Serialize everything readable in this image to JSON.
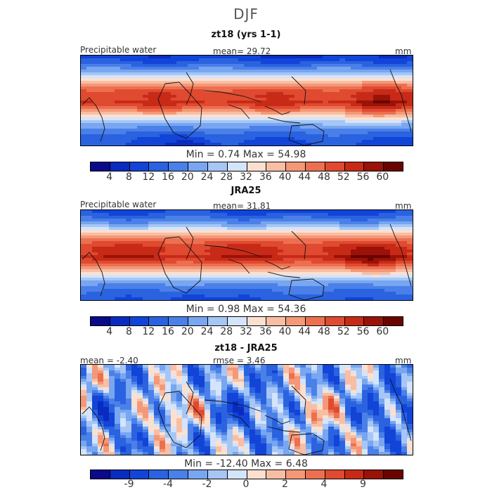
{
  "title": "DJF",
  "panels": [
    {
      "title": "zt18 (yrs 1-1)",
      "left_label": "Precipitable water",
      "center_label": "mean=  29.72",
      "unit": "mm",
      "minmax": "Min =   0.74  Max =  54.98",
      "colorbar": {
        "colors": [
          "#0a0a8a",
          "#0a2bc0",
          "#1244d8",
          "#2a62e0",
          "#4a80e8",
          "#78a6f0",
          "#a6c6f6",
          "#d4e4fa",
          "#fbe0d0",
          "#f8bea4",
          "#f49878",
          "#ec7050",
          "#e04a30",
          "#c82a18",
          "#9a1208",
          "#6a0400"
        ],
        "ticks": [
          "4",
          "8",
          "12",
          "16",
          "20",
          "24",
          "28",
          "32",
          "36",
          "40",
          "44",
          "48",
          "52",
          "56",
          "60"
        ]
      }
    },
    {
      "title": "JRA25",
      "left_label": "Precipitable water",
      "center_label": "mean=  31.81",
      "unit": "mm",
      "minmax": "Min =   0.98  Max =  54.36",
      "colorbar": {
        "colors": [
          "#0a0a8a",
          "#0a2bc0",
          "#1244d8",
          "#2a62e0",
          "#4a80e8",
          "#78a6f0",
          "#a6c6f6",
          "#d4e4fa",
          "#fbe0d0",
          "#f8bea4",
          "#f49878",
          "#ec7050",
          "#e04a30",
          "#c82a18",
          "#9a1208",
          "#6a0400"
        ],
        "ticks": [
          "4",
          "8",
          "12",
          "16",
          "20",
          "24",
          "28",
          "32",
          "36",
          "40",
          "44",
          "48",
          "52",
          "56",
          "60"
        ]
      }
    },
    {
      "title": "zt18 - JRA25",
      "left_label": "mean =  -2.40",
      "center_label": "rmse =   3.46",
      "unit": "mm",
      "minmax": "Min = -12.40  Max =   6.48",
      "colorbar": {
        "colors": [
          "#0a0a8a",
          "#0a2bc0",
          "#1244d8",
          "#2a62e0",
          "#4a80e8",
          "#78a6f0",
          "#a6c6f6",
          "#d4e4fa",
          "#fbe0d0",
          "#f8bea4",
          "#f49878",
          "#ec7050",
          "#e04a30",
          "#c82a18",
          "#9a1208",
          "#6a0400"
        ],
        "ticks": [
          "-9",
          "-4",
          "-2",
          "0",
          "2",
          "4",
          "9"
        ],
        "tick_positions": [
          2,
          4,
          6,
          8,
          10,
          12,
          14
        ]
      }
    }
  ]
}
